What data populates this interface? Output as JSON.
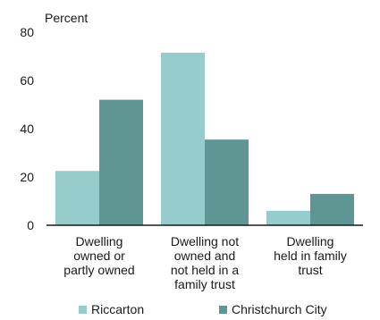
{
  "chart_data": {
    "type": "bar",
    "ylabel": "Percent",
    "ylim": [
      0,
      80
    ],
    "yticks": [
      0,
      20,
      40,
      60,
      80
    ],
    "grid": false,
    "legend_position": "bottom",
    "categories": [
      [
        "Dwelling",
        "owned or",
        "partly owned"
      ],
      [
        "Dwelling not",
        "owned and",
        "not held in a",
        "family trust"
      ],
      [
        "Dwelling",
        "held in family",
        "trust"
      ]
    ],
    "series": [
      {
        "name": "Riccarton",
        "color": "#96cccb",
        "values": [
          22.5,
          71.5,
          6
        ]
      },
      {
        "name": "Christchurch City",
        "color": "#5e9694",
        "values": [
          52,
          35.5,
          13
        ]
      }
    ]
  }
}
